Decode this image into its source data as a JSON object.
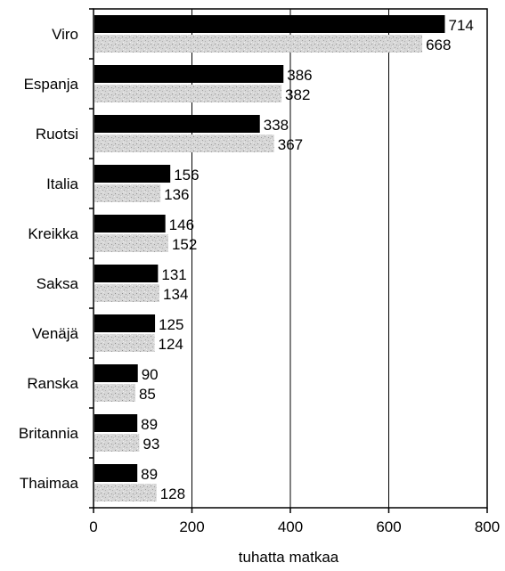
{
  "chart_data": {
    "type": "bar",
    "orientation": "horizontal",
    "categories": [
      "Viro",
      "Espanja",
      "Ruotsi",
      "Italia",
      "Kreikka",
      "Saksa",
      "Venäjä",
      "Ranska",
      "Britannia",
      "Thaimaa"
    ],
    "series": [
      {
        "values": [
          714,
          386,
          338,
          156,
          146,
          131,
          125,
          90,
          89,
          89
        ],
        "color": "#000000"
      },
      {
        "values": [
          668,
          382,
          367,
          136,
          152,
          134,
          124,
          85,
          93,
          128
        ],
        "color": "#c8c8c8",
        "pattern": "speckled"
      }
    ],
    "title": "",
    "xlabel": "tuhatta matkaa",
    "ylabel": "",
    "xlim": [
      0,
      800
    ],
    "x_ticks": [
      0,
      200,
      400,
      600,
      800
    ],
    "x_tick_labels": [
      "0",
      "200",
      "400",
      "600",
      "800"
    ],
    "grid": "vertical",
    "legend": "none"
  }
}
